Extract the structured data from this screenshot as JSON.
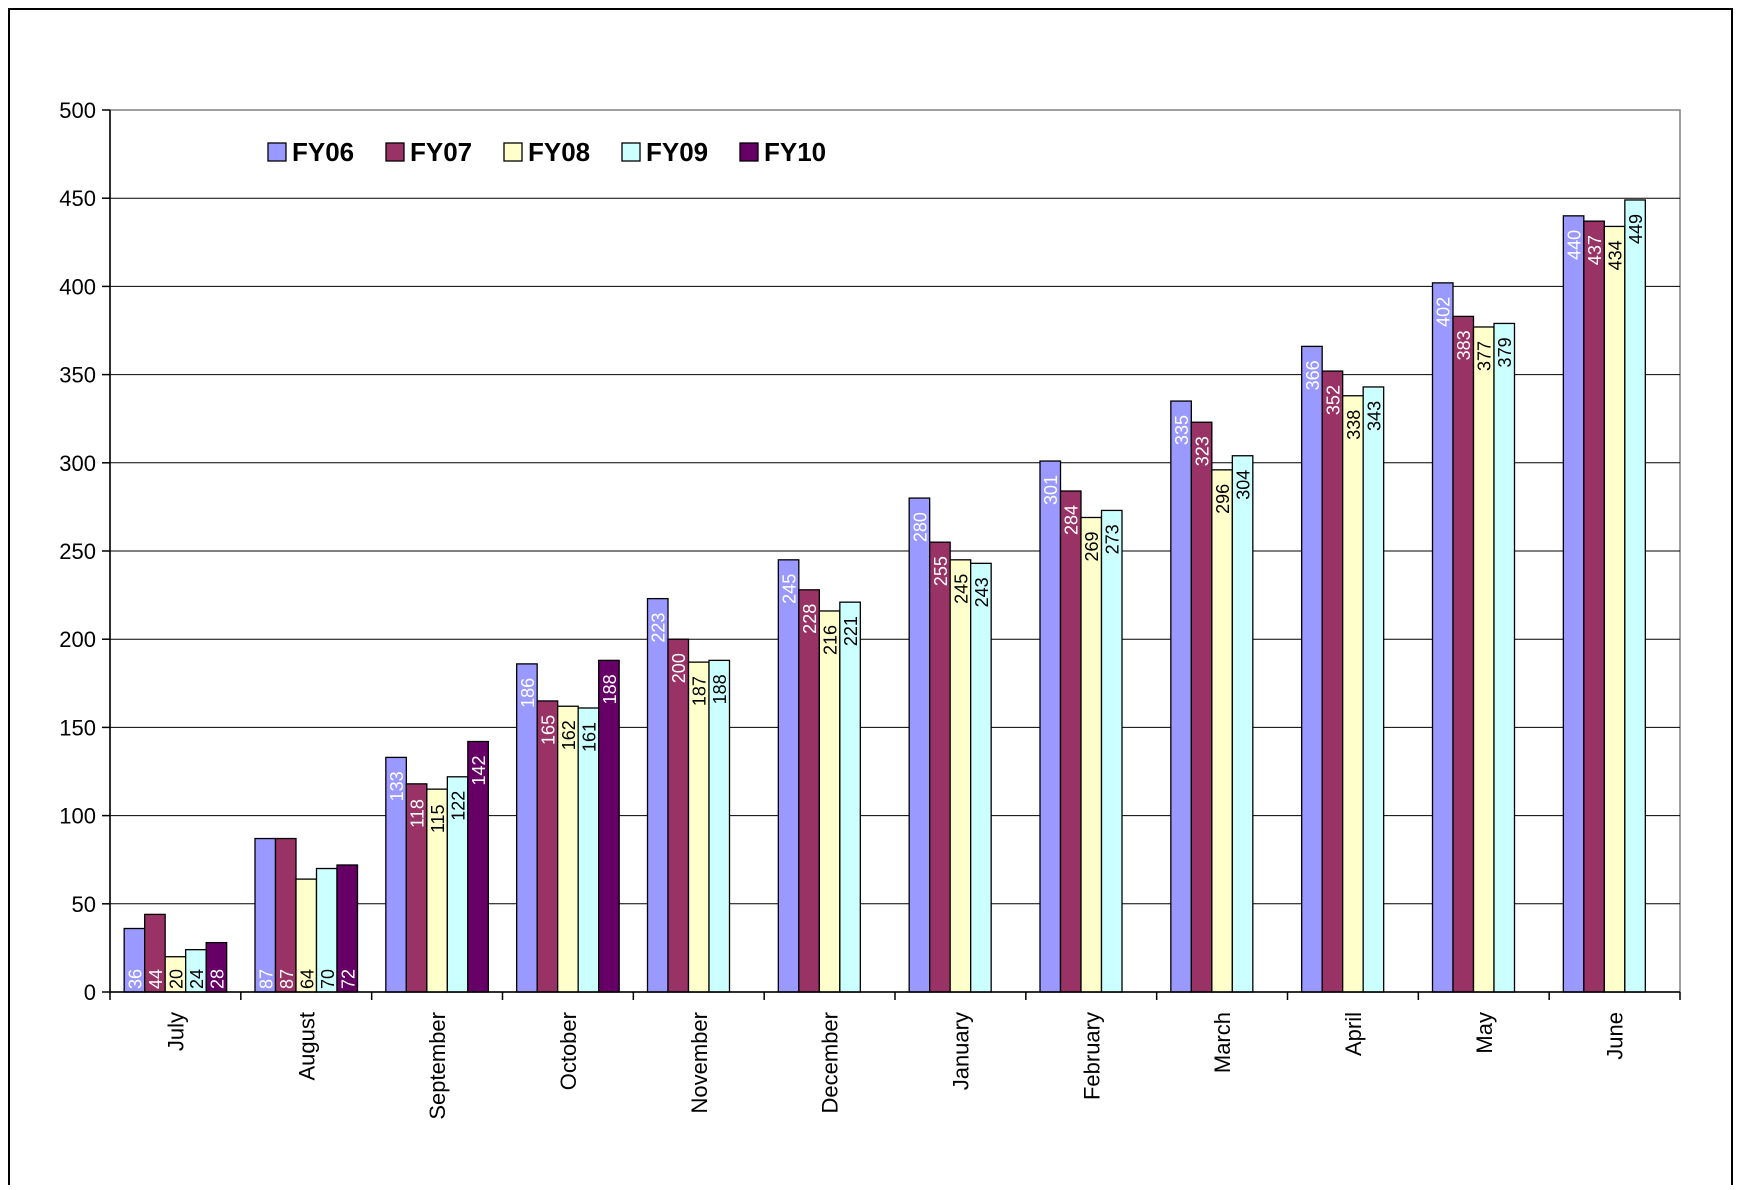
{
  "chart_data": {
    "type": "bar",
    "title": "",
    "xlabel": "",
    "ylabel": "",
    "ylim": [
      0,
      500
    ],
    "y_ticks": [
      0,
      50,
      100,
      150,
      200,
      250,
      300,
      350,
      400,
      450,
      500
    ],
    "grid": true,
    "legend_position": "top-left",
    "categories": [
      "July",
      "August",
      "September",
      "October",
      "November",
      "December",
      "January",
      "February",
      "March",
      "April",
      "May",
      "June"
    ],
    "series": [
      {
        "name": "FY06",
        "color": "#9999ff",
        "label_color": "#ffffff",
        "values": [
          36,
          87,
          133,
          186,
          223,
          245,
          280,
          301,
          335,
          366,
          402,
          440
        ]
      },
      {
        "name": "FY07",
        "color": "#993366",
        "label_color": "#ffffff",
        "values": [
          44,
          87,
          118,
          165,
          200,
          228,
          255,
          284,
          323,
          352,
          383,
          437
        ]
      },
      {
        "name": "FY08",
        "color": "#ffffcc",
        "label_color": "#000000",
        "values": [
          20,
          64,
          115,
          162,
          187,
          216,
          245,
          269,
          296,
          338,
          377,
          434
        ]
      },
      {
        "name": "FY09",
        "color": "#ccffff",
        "label_color": "#000000",
        "values": [
          24,
          70,
          122,
          161,
          188,
          221,
          243,
          273,
          304,
          343,
          379,
          449
        ]
      },
      {
        "name": "FY10",
        "color": "#660066",
        "label_color": "#ffffff",
        "values": [
          28,
          72,
          142,
          188,
          null,
          null,
          null,
          null,
          null,
          null,
          null,
          null
        ]
      }
    ]
  }
}
